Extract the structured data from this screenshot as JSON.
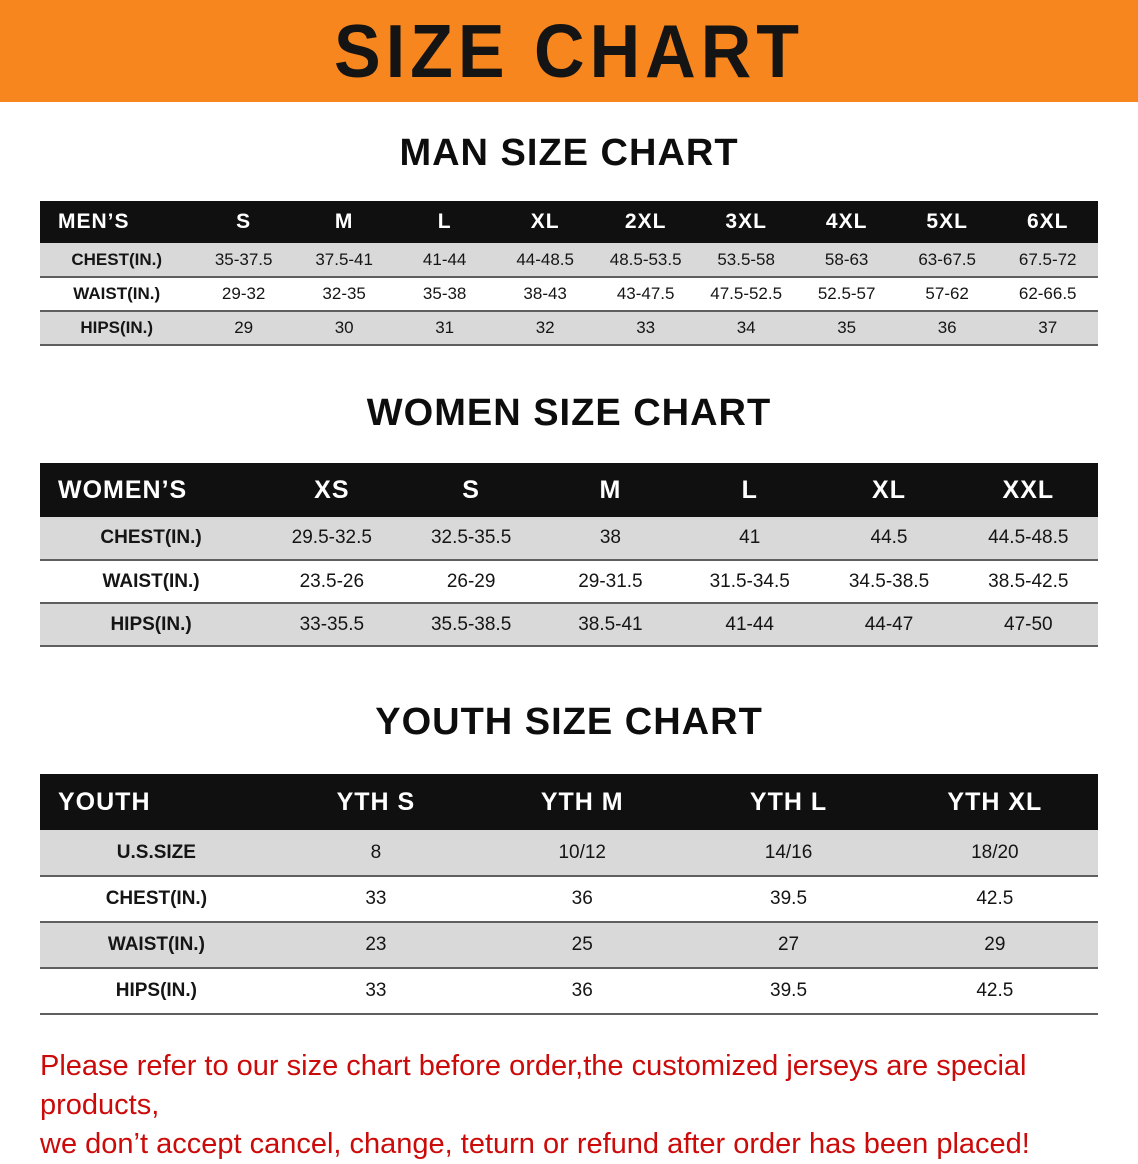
{
  "banner": {
    "title": "SIZE CHART"
  },
  "colors": {
    "banner_bg": "#F6861D",
    "table_header_bg": "#101010",
    "table_header_text": "#FFFFFF",
    "row_shaded": "#D9D9D9",
    "row_plain": "#FFFFFF",
    "row_divider": "#5F5F5F",
    "heading_text": "#0D0D0D",
    "disclaimer_text": "#CC0A0A"
  },
  "chart_data": [
    {
      "type": "table",
      "title": "MAN SIZE CHART",
      "columns": [
        "MEN’S",
        "S",
        "M",
        "L",
        "XL",
        "2XL",
        "3XL",
        "4XL",
        "5XL",
        "6XL"
      ],
      "rows": [
        [
          "CHEST(IN.)",
          "35-37.5",
          "37.5-41",
          "41-44",
          "44-48.5",
          "48.5-53.5",
          "53.5-58",
          "58-63",
          "63-67.5",
          "67.5-72"
        ],
        [
          "WAIST(IN.)",
          "29-32",
          "32-35",
          "35-38",
          "38-43",
          "43-47.5",
          "47.5-52.5",
          "52.5-57",
          "57-62",
          "62-66.5"
        ],
        [
          "HIPS(IN.)",
          "29",
          "30",
          "31",
          "32",
          "33",
          "34",
          "35",
          "36",
          "37"
        ]
      ]
    },
    {
      "type": "table",
      "title": "WOMEN SIZE CHART",
      "columns": [
        "WOMEN’S",
        "XS",
        "S",
        "M",
        "L",
        "XL",
        "XXL"
      ],
      "rows": [
        [
          "CHEST(IN.)",
          "29.5-32.5",
          "32.5-35.5",
          "38",
          "41",
          "44.5",
          "44.5-48.5"
        ],
        [
          "WAIST(IN.)",
          "23.5-26",
          "26-29",
          "29-31.5",
          "31.5-34.5",
          "34.5-38.5",
          "38.5-42.5"
        ],
        [
          "HIPS(IN.)",
          "33-35.5",
          "35.5-38.5",
          "38.5-41",
          "41-44",
          "44-47",
          "47-50"
        ]
      ]
    },
    {
      "type": "table",
      "title": "YOUTH SIZE CHART",
      "columns": [
        "YOUTH",
        "YTH S",
        "YTH M",
        "YTH L",
        "YTH XL"
      ],
      "rows": [
        [
          "U.S.SIZE",
          "8",
          "10/12",
          "14/16",
          "18/20"
        ],
        [
          "CHEST(IN.)",
          "33",
          "36",
          "39.5",
          "42.5"
        ],
        [
          "WAIST(IN.)",
          "23",
          "25",
          "27",
          "29"
        ],
        [
          "HIPS(IN.)",
          "33",
          "36",
          "39.5",
          "42.5"
        ]
      ]
    }
  ],
  "disclaimer": {
    "line1": "Please refer to our size chart before order,the customized jerseys are special products,",
    "line2": "we don’t accept cancel, change, teturn or refund after order has been placed!"
  }
}
